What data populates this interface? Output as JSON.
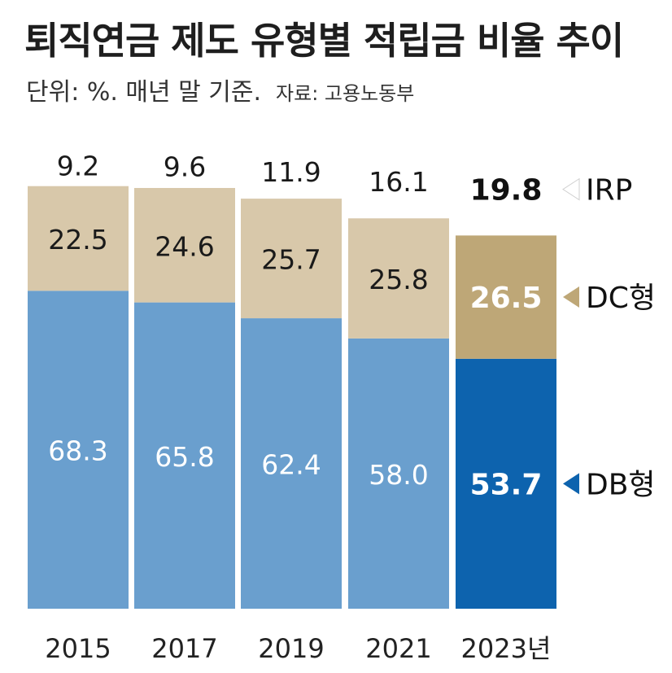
{
  "header": {
    "title": "퇴직연금 제도 유형별 적립금 비율 추이",
    "subtitle": "단위: %. 매년 말 기준.",
    "source": "자료: 고용노동부"
  },
  "colors": {
    "plot_background": "#ffffff",
    "irp": "#ffffff",
    "dc": "#d8c8aa",
    "db": "#6a9fce",
    "dc_highlight": "#bea777",
    "db_highlight": "#0d63ae"
  },
  "chart_data": {
    "type": "bar",
    "stacked": true,
    "title": "퇴직연금 제도 유형별 적립금 비율 추이",
    "subtitle": "단위: %. 매년 말 기준.",
    "xlabel": "",
    "ylabel": "",
    "ylim": [
      0,
      100
    ],
    "categories": [
      "2015",
      "2017",
      "2019",
      "2021",
      "2023년"
    ],
    "highlight_index": 4,
    "series": [
      {
        "name": "DB형",
        "values": [
          68.3,
          65.8,
          62.4,
          58.0,
          53.7
        ]
      },
      {
        "name": "DC형",
        "values": [
          22.5,
          24.6,
          25.7,
          25.8,
          26.5
        ]
      },
      {
        "name": "IRP",
        "values": [
          9.2,
          9.6,
          11.9,
          16.1,
          19.8
        ]
      }
    ],
    "value_labels": [
      [
        "68.3",
        "65.8",
        "62.4",
        "58.0",
        "53.7"
      ],
      [
        "22.5",
        "24.6",
        "25.7",
        "25.8",
        "26.5"
      ],
      [
        "9.2",
        "9.6",
        "11.9",
        "16.1",
        "19.8"
      ]
    ],
    "legend": [
      "IRP",
      "DC형",
      "DB형"
    ],
    "legend_position": "right"
  }
}
